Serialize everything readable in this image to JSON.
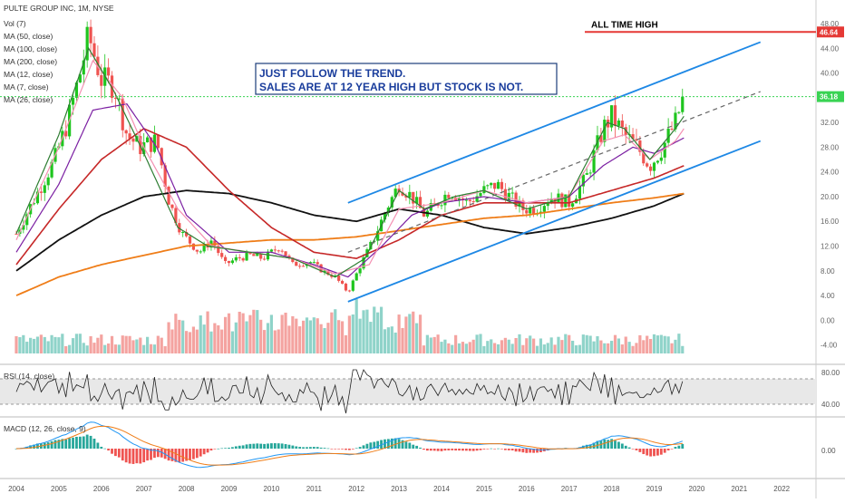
{
  "header": {
    "symbol_title": "PULTE GROUP INC, 1M, NYSE",
    "indicators": [
      "Vol (7)",
      "MA (50, close)",
      "MA (100, close)",
      "MA (200, close)",
      "MA (12, close)",
      "MA (7, close)",
      "MA (26, close)"
    ]
  },
  "annotations": {
    "callout_line1": "JUST FOLLOW THE TREND.",
    "callout_line2": "SALES ARE AT 12 YEAR HIGH BUT STOCK IS NOT.",
    "ath_label": "ALL TIME HIGH"
  },
  "price_badges": {
    "ath_value": "46.64",
    "current_value": "36.18"
  },
  "colors": {
    "up": "#26a69a",
    "up_bright": "#1ec51e",
    "down": "#ef5350",
    "channel": "#1e88e5",
    "ath_line": "#e53935",
    "current_line": "#39d353",
    "ma_black": "#111111",
    "ma_orange": "#ef7d18",
    "ma_darkred": "#c62828",
    "ma_purple": "#7b1fa2",
    "ma_pink": "#f48fb1",
    "ma_green": "#2e7d32"
  },
  "rsi_panel": {
    "label": "RSI (14, close)",
    "ticks": [
      "80.00",
      "40.00"
    ]
  },
  "macd_panel": {
    "label": "MACD (12, 26, close, 9)",
    "ticks": [
      "0.00"
    ]
  },
  "chart_data": {
    "type": "candlestick",
    "x_axis_ticks": [
      "2004",
      "2005",
      "2006",
      "2007",
      "2008",
      "2009",
      "2010",
      "2011",
      "2012",
      "2013",
      "2014",
      "2015",
      "2016",
      "2017",
      "2018",
      "2019",
      "2020",
      "2021",
      "2022"
    ],
    "y_axis_ticks": [
      "48.00",
      "44.00",
      "40.00",
      "36.00",
      "32.00",
      "28.00",
      "24.00",
      "20.00",
      "16.00",
      "12.00",
      "8.00",
      "4.00",
      "0.00",
      "-4.00"
    ],
    "ylim": [
      -5,
      50
    ],
    "price_series": [
      [
        "2004.0",
        14
      ],
      [
        "2004.3",
        18
      ],
      [
        "2004.6",
        22
      ],
      [
        "2004.9",
        26
      ],
      [
        "2005.2",
        32
      ],
      [
        "2005.5",
        40
      ],
      [
        "2005.7",
        46
      ],
      [
        "2006.0",
        39
      ],
      [
        "2006.3",
        38
      ],
      [
        "2006.6",
        30
      ],
      [
        "2006.9",
        28
      ],
      [
        "2007.3",
        29
      ],
      [
        "2007.6",
        19
      ],
      [
        "2007.9",
        14
      ],
      [
        "2008.3",
        11
      ],
      [
        "2008.6",
        13
      ],
      [
        "2008.9",
        9
      ],
      [
        "2009.2",
        10
      ],
      [
        "2009.5",
        10.5
      ],
      [
        "2009.8",
        10
      ],
      [
        "2010.2",
        12
      ],
      [
        "2010.5",
        9
      ],
      [
        "2010.9",
        9.5
      ],
      [
        "2011.2",
        8
      ],
      [
        "2011.5",
        7
      ],
      [
        "2011.8",
        4.5
      ],
      [
        "2012.1",
        9
      ],
      [
        "2012.4",
        13
      ],
      [
        "2012.7",
        18
      ],
      [
        "2013.0",
        22
      ],
      [
        "2013.3",
        20
      ],
      [
        "2013.6",
        17
      ],
      [
        "2013.9",
        19
      ],
      [
        "2014.2",
        21
      ],
      [
        "2014.6",
        19
      ],
      [
        "2015.0",
        21
      ],
      [
        "2015.3",
        22
      ],
      [
        "2015.6",
        20
      ],
      [
        "2015.9",
        18
      ],
      [
        "2016.2",
        18
      ],
      [
        "2016.6",
        20
      ],
      [
        "2017.0",
        19
      ],
      [
        "2017.4",
        23
      ],
      [
        "2017.8",
        31
      ],
      [
        "2018.0",
        33
      ],
      [
        "2018.3",
        30
      ],
      [
        "2018.6",
        28
      ],
      [
        "2018.9",
        25
      ],
      [
        "2019.2",
        28
      ],
      [
        "2019.5",
        32
      ],
      [
        "2019.7",
        36.18
      ]
    ],
    "moving_averages": [
      {
        "name": "MA (200, close)",
        "points": [
          [
            "2004.0",
            8
          ],
          [
            "2005.0",
            13
          ],
          [
            "2006.0",
            17
          ],
          [
            "2007.0",
            20
          ],
          [
            "2008.0",
            21
          ],
          [
            "2009.0",
            20.5
          ],
          [
            "2010.0",
            19
          ],
          [
            "2011.0",
            17
          ],
          [
            "2012.0",
            16
          ],
          [
            "2013.0",
            18
          ],
          [
            "2014.0",
            17
          ],
          [
            "2015.0",
            15
          ],
          [
            "2016.0",
            14
          ],
          [
            "2017.0",
            15
          ],
          [
            "2018.0",
            16.5
          ],
          [
            "2019.0",
            18.5
          ],
          [
            "2019.7",
            20.5
          ]
        ]
      },
      {
        "name": "MA (100, close)",
        "points": [
          [
            "2004.0",
            4
          ],
          [
            "2005.0",
            7
          ],
          [
            "2006.0",
            9
          ],
          [
            "2007.0",
            10.5
          ],
          [
            "2008.0",
            12
          ],
          [
            "2009.0",
            12.5
          ],
          [
            "2010.0",
            13
          ],
          [
            "2011.0",
            13
          ],
          [
            "2012.0",
            13.5
          ],
          [
            "2013.0",
            14.5
          ],
          [
            "2014.0",
            15.5
          ],
          [
            "2015.0",
            16.5
          ],
          [
            "2016.0",
            17
          ],
          [
            "2017.0",
            18
          ],
          [
            "2018.0",
            19
          ],
          [
            "2019.0",
            19.8
          ],
          [
            "2019.7",
            20.5
          ]
        ]
      },
      {
        "name": "MA (50, close)",
        "points": [
          [
            "2004.0",
            9
          ],
          [
            "2005.0",
            18
          ],
          [
            "2006.0",
            26
          ],
          [
            "2007.0",
            31
          ],
          [
            "2008.0",
            28
          ],
          [
            "2009.0",
            21
          ],
          [
            "2010.0",
            15
          ],
          [
            "2011.0",
            11
          ],
          [
            "2012.0",
            10
          ],
          [
            "2013.0",
            13
          ],
          [
            "2014.0",
            17
          ],
          [
            "2015.0",
            19
          ],
          [
            "2016.0",
            19
          ],
          [
            "2017.0",
            19
          ],
          [
            "2018.0",
            21
          ],
          [
            "2019.0",
            23
          ],
          [
            "2019.7",
            25
          ]
        ]
      },
      {
        "name": "MA (26, close)",
        "points": [
          [
            "2004.0",
            11
          ],
          [
            "2005.0",
            22
          ],
          [
            "2005.8",
            34
          ],
          [
            "2006.6",
            35
          ],
          [
            "2007.3",
            28
          ],
          [
            "2008.0",
            17
          ],
          [
            "2009.0",
            11
          ],
          [
            "2010.0",
            11
          ],
          [
            "2011.0",
            9
          ],
          [
            "2011.8",
            7
          ],
          [
            "2012.6",
            12
          ],
          [
            "2013.3",
            17
          ],
          [
            "2014.0",
            19
          ],
          [
            "2015.0",
            20
          ],
          [
            "2016.0",
            19
          ],
          [
            "2017.0",
            20
          ],
          [
            "2017.8",
            25
          ],
          [
            "2018.5",
            28
          ],
          [
            "2019.0",
            27
          ],
          [
            "2019.7",
            29.5
          ]
        ]
      },
      {
        "name": "MA (12, close)",
        "points": [
          [
            "2004.0",
            13
          ],
          [
            "2005.0",
            28
          ],
          [
            "2005.8",
            42
          ],
          [
            "2006.5",
            36
          ],
          [
            "2007.0",
            28
          ],
          [
            "2007.8",
            18
          ],
          [
            "2008.6",
            12
          ],
          [
            "2009.5",
            11
          ],
          [
            "2010.5",
            10
          ],
          [
            "2011.5",
            7.5
          ],
          [
            "2012.3",
            9
          ],
          [
            "2013.0",
            18
          ],
          [
            "2014.0",
            19
          ],
          [
            "2015.0",
            21
          ],
          [
            "2016.0",
            19
          ],
          [
            "2017.0",
            20
          ],
          [
            "2017.8",
            29
          ],
          [
            "2018.3",
            30
          ],
          [
            "2018.9",
            26
          ],
          [
            "2019.5",
            29
          ],
          [
            "2019.7",
            31
          ]
        ]
      },
      {
        "name": "MA (7, close)",
        "points": [
          [
            "2004.0",
            14
          ],
          [
            "2005.0",
            30
          ],
          [
            "2005.7",
            44
          ],
          [
            "2006.3",
            37
          ],
          [
            "2007.0",
            27
          ],
          [
            "2007.8",
            15
          ],
          [
            "2008.5",
            12
          ],
          [
            "2009.5",
            11
          ],
          [
            "2010.5",
            10
          ],
          [
            "2011.5",
            7
          ],
          [
            "2012.2",
            10
          ],
          [
            "2013.0",
            21
          ],
          [
            "2013.6",
            18
          ],
          [
            "2014.3",
            20
          ],
          [
            "2015.0",
            21
          ],
          [
            "2016.0",
            18
          ],
          [
            "2017.0",
            20
          ],
          [
            "2017.9",
            32
          ],
          [
            "2018.3",
            31
          ],
          [
            "2018.9",
            26
          ],
          [
            "2019.5",
            31
          ],
          [
            "2019.7",
            33
          ]
        ]
      }
    ],
    "channel": {
      "upper": [
        [
          "2011.8",
          19
        ],
        [
          "2021.5",
          45
        ]
      ],
      "middle": [
        [
          "2011.8",
          11
        ],
        [
          "2021.5",
          37
        ]
      ],
      "lower": [
        [
          "2011.8",
          3
        ],
        [
          "2021.5",
          29
        ]
      ]
    },
    "levels": {
      "all_time_high": 46.64,
      "current": 36.18
    }
  }
}
